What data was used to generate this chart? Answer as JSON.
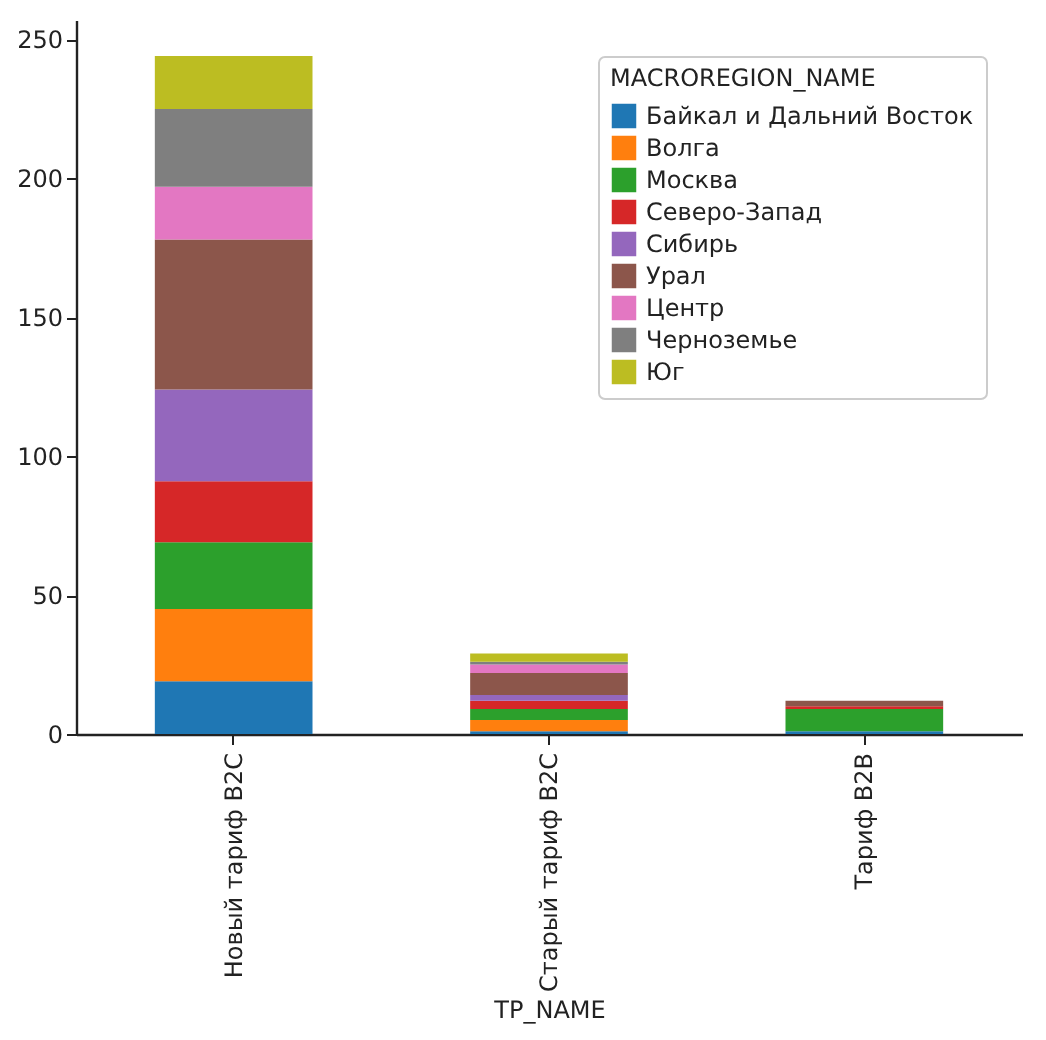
{
  "chart_data": {
    "type": "bar",
    "stacked": true,
    "xlabel": "TP_NAME",
    "legend_title": "MACROREGION_NAME",
    "legend": "top right",
    "grid": false,
    "categories": [
      "Новый тариф B2C",
      "Старый тариф B2C",
      "Тариф B2B"
    ],
    "ylim": [
      0,
      257
    ],
    "yticks": [
      0,
      50,
      100,
      150,
      200,
      250
    ],
    "series": [
      {
        "name": "Байкал и Дальний Восток",
        "color": "#1f77b4",
        "values": [
          19,
          1,
          1
        ]
      },
      {
        "name": "Волга",
        "color": "#ff7f0e",
        "values": [
          26,
          4,
          0
        ]
      },
      {
        "name": "Москва",
        "color": "#2ca02c",
        "values": [
          24,
          4,
          8
        ]
      },
      {
        "name": "Северо-Запад",
        "color": "#d62728",
        "values": [
          22,
          3,
          1
        ]
      },
      {
        "name": "Сибирь",
        "color": "#9467bd",
        "values": [
          33,
          2,
          0
        ]
      },
      {
        "name": "Урал",
        "color": "#8c564b",
        "values": [
          54,
          8,
          2
        ]
      },
      {
        "name": "Центр",
        "color": "#e377c2",
        "values": [
          19,
          3,
          0
        ]
      },
      {
        "name": "Черноземье",
        "color": "#7f7f7f",
        "values": [
          28,
          1,
          0
        ]
      },
      {
        "name": "Юг",
        "color": "#bcbd22",
        "values": [
          19,
          3,
          0
        ]
      }
    ]
  }
}
